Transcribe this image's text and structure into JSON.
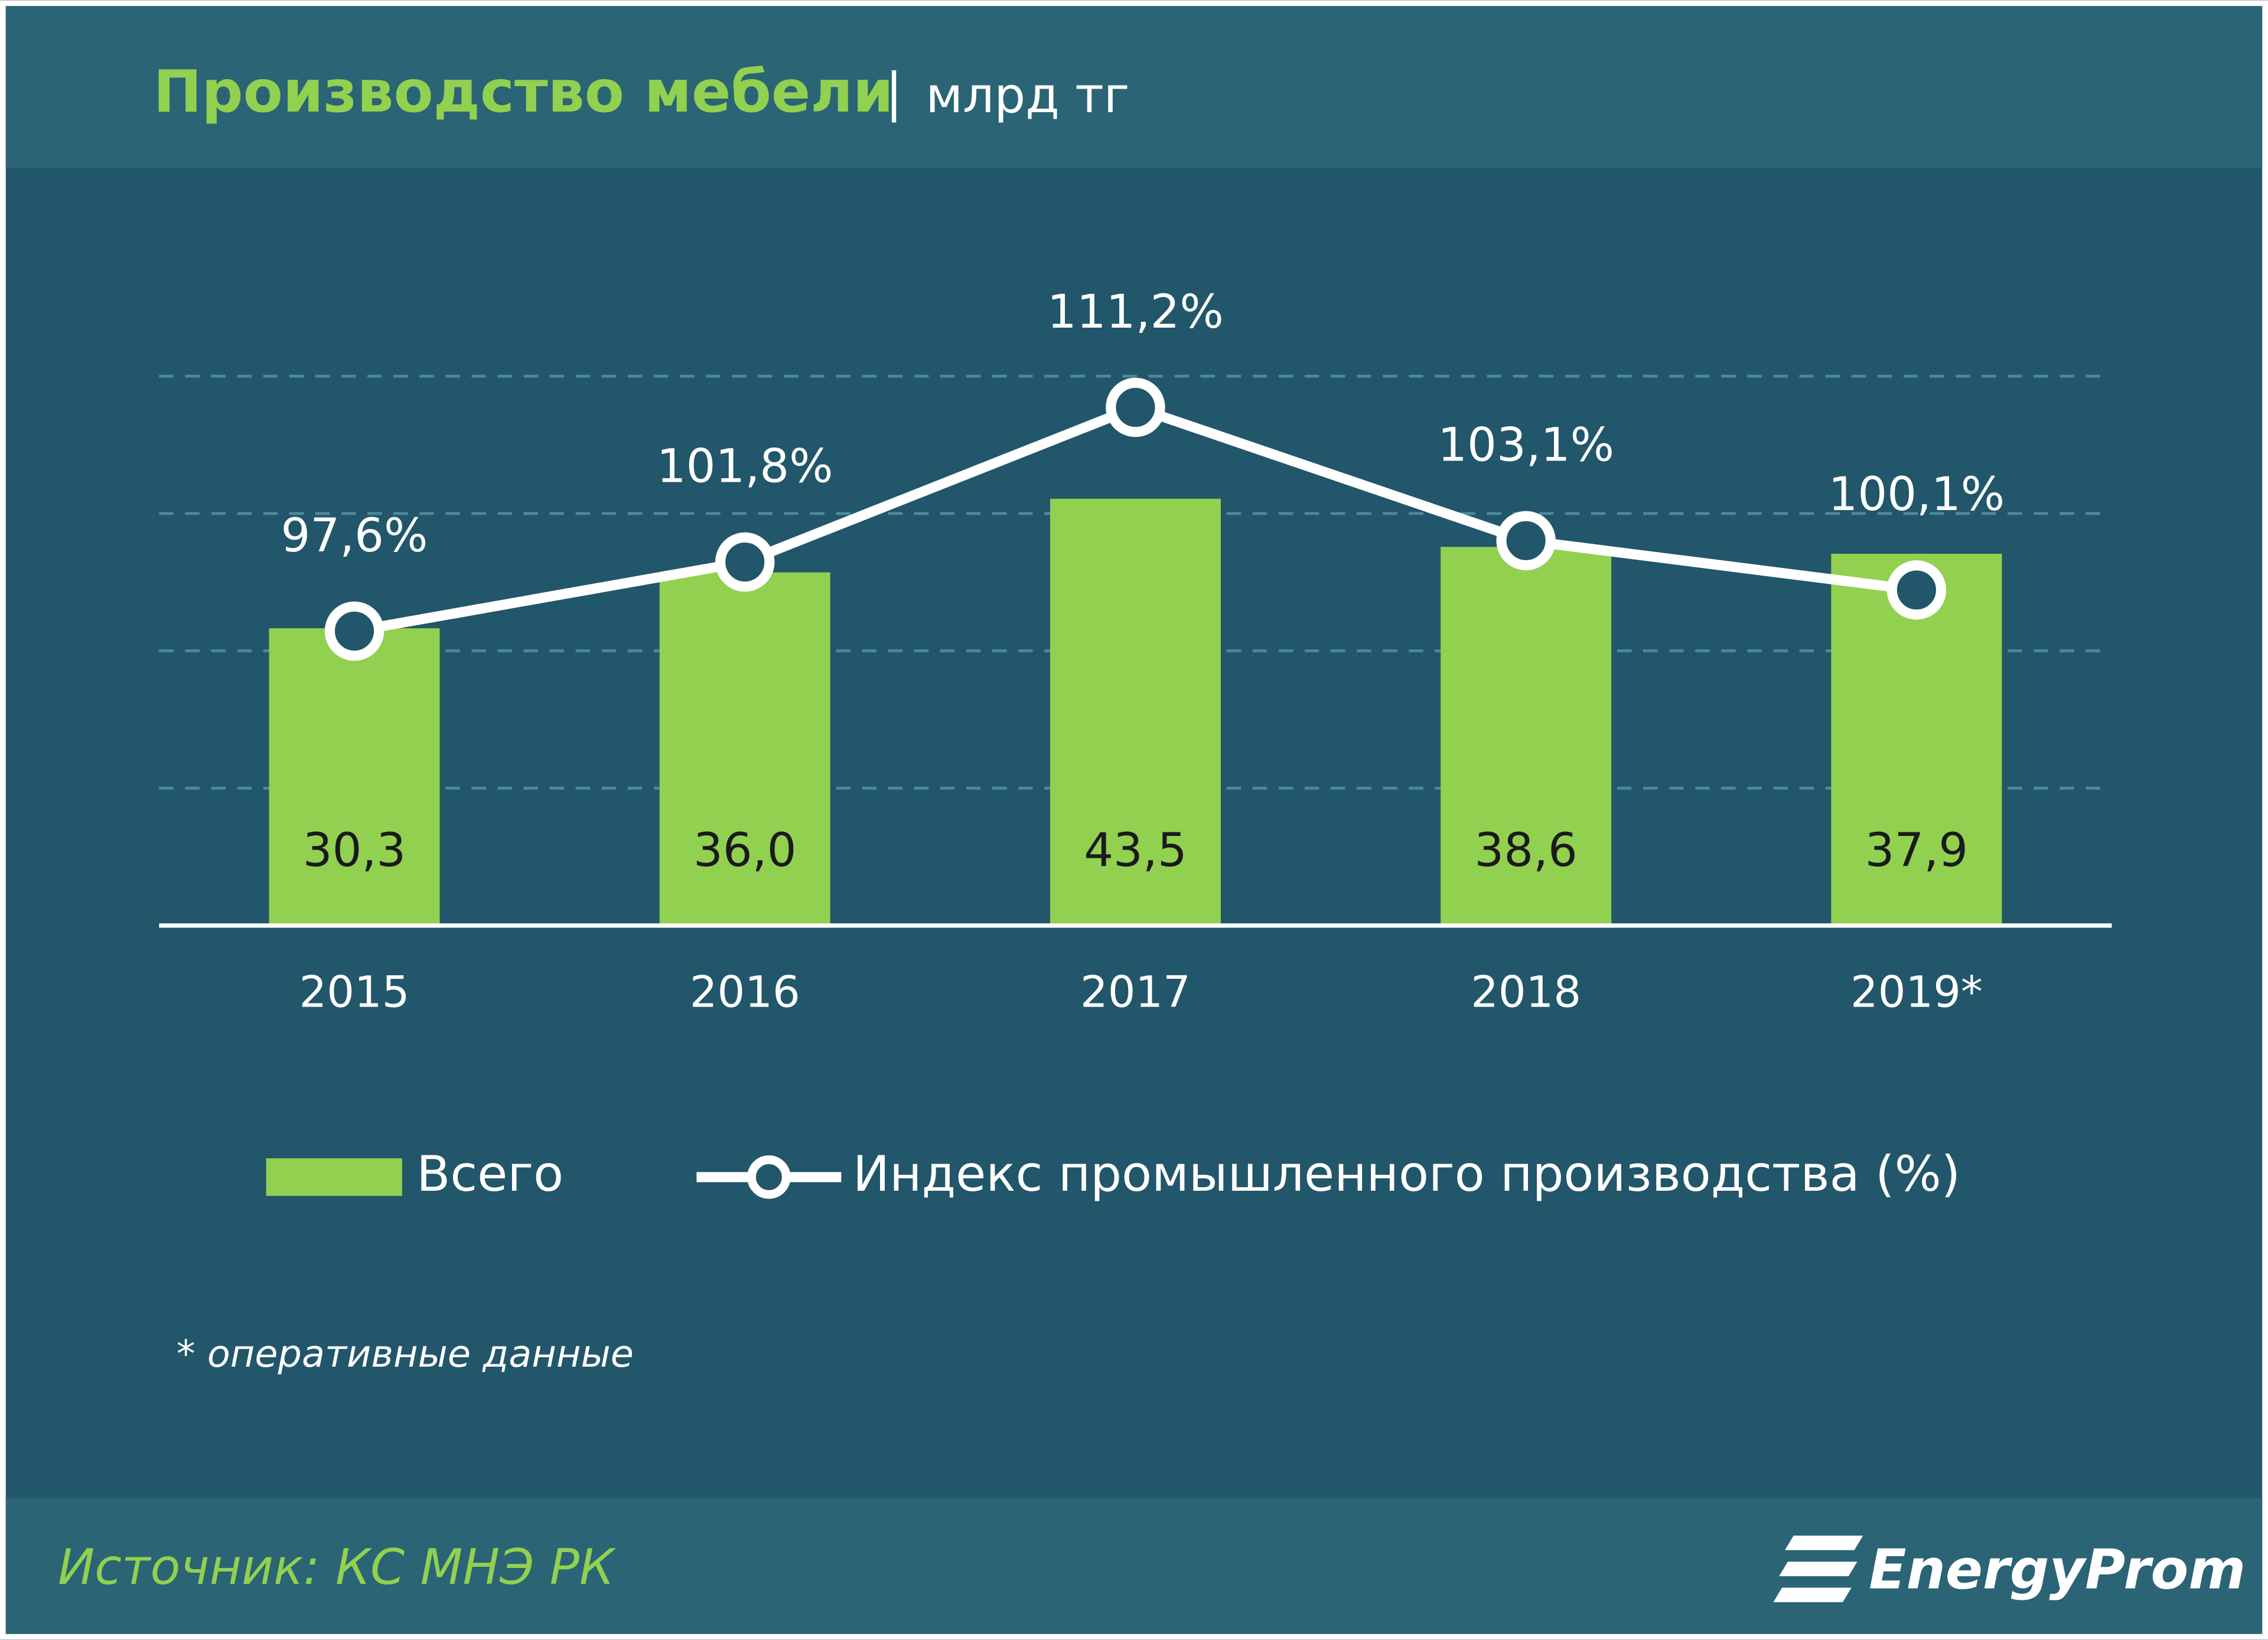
{
  "chart_data": {
    "type": "bar-line",
    "title": "Производство мебели",
    "subtitle": "млрд тг",
    "categories": [
      "2015",
      "2016",
      "2017",
      "2018",
      "2019*"
    ],
    "series": [
      {
        "name": "Всего",
        "type": "bar",
        "color": "#92d050",
        "values": [
          30.3,
          36.0,
          43.5,
          38.6,
          37.9
        ],
        "value_labels": [
          "30,3",
          "36,0",
          "43,5",
          "38,6",
          "37,9"
        ]
      },
      {
        "name": "Индекс промышленного производства (%)",
        "type": "line",
        "axis": "y2",
        "color": "#ffffff",
        "values": [
          97.6,
          101.8,
          111.2,
          103.1,
          100.1
        ],
        "value_labels": [
          "97,6%",
          "101,8%",
          "111,2%",
          "103,1%",
          "100,1%"
        ]
      }
    ],
    "ylim": [
      0,
      56
    ],
    "yticks": [
      0,
      14,
      28,
      42,
      56
    ],
    "y2lim": [
      79.7,
      113.1
    ],
    "grid": true,
    "note": "* оперативные данные",
    "source": "Источник: КС МНЭ РК",
    "logo": "EnergyProm"
  }
}
